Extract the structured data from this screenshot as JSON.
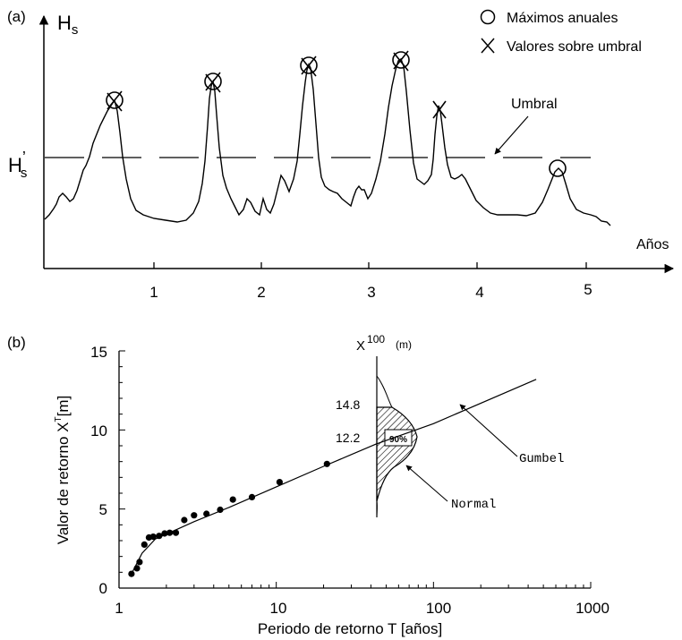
{
  "panel_a": {
    "label": "(a)",
    "y_label_main": "H",
    "y_label_sub": "s",
    "threshold_main": "H",
    "threshold_prime": "’",
    "threshold_sub": "s",
    "legend": [
      {
        "symbol": "circle",
        "label": "Máximos anuales"
      },
      {
        "symbol": "cross",
        "label": "Valores sobre umbral"
      }
    ],
    "umbral_label": "Umbral",
    "x_label": "Años",
    "x_ticks": [
      "1",
      "2",
      "3",
      "4",
      "5"
    ]
  },
  "panel_b": {
    "label": "(b)",
    "y_label": "Valor de retorno X",
    "y_label_sup": "T",
    "y_label_unit": "[m]",
    "x_label": "Periodo de retorno T [años]",
    "x_ticks": [
      "1",
      "10",
      "100",
      "1000"
    ],
    "y_ticks": [
      "0",
      "5",
      "10",
      "15"
    ],
    "inset_axis": "X",
    "inset_sup": "100",
    "inset_unit": "(m)",
    "inset_upper": "14.8",
    "inset_lower": "12.2",
    "inset_box": "90%",
    "gumbel_label": "Gumbel",
    "normal_label": "Normal"
  },
  "chart_data": [
    {
      "type": "line",
      "x_range": [
        0,
        5.6
      ],
      "x_ticks": [
        1,
        2,
        3,
        4,
        5
      ],
      "threshold_relative": 0.5,
      "annual_maxima_x": [
        0.65,
        1.55,
        2.45,
        3.3,
        4.75
      ],
      "peaks_over_threshold_x": [
        0.65,
        1.55,
        2.45,
        3.3,
        3.65
      ]
    },
    {
      "type": "scatter",
      "x_scale": "log",
      "xlim": [
        1,
        1000
      ],
      "ylim": [
        0,
        15
      ],
      "points": [
        [
          1.2,
          0.9
        ],
        [
          1.3,
          1.25
        ],
        [
          1.35,
          1.65
        ],
        [
          1.45,
          2.75
        ],
        [
          1.55,
          3.2
        ],
        [
          1.65,
          3.25
        ],
        [
          1.8,
          3.3
        ],
        [
          1.95,
          3.45
        ],
        [
          2.1,
          3.5
        ],
        [
          2.3,
          3.5
        ],
        [
          2.6,
          4.3
        ],
        [
          3.0,
          4.6
        ],
        [
          3.6,
          4.7
        ],
        [
          4.4,
          4.95
        ],
        [
          5.3,
          5.6
        ],
        [
          7.0,
          5.75
        ],
        [
          10.5,
          6.7
        ],
        [
          21.0,
          7.85
        ]
      ],
      "gumbel_fit": [
        [
          1.2,
          0.9
        ],
        [
          1.4,
          2.2
        ],
        [
          1.7,
          3.1
        ],
        [
          2.2,
          3.6
        ],
        [
          3,
          4.2
        ],
        [
          5,
          5.1
        ],
        [
          10,
          6.4
        ],
        [
          20,
          7.7
        ],
        [
          43,
          9.1
        ],
        [
          100,
          10.4
        ],
        [
          450,
          13.2
        ]
      ],
      "normal_at_T": 43,
      "normal_interval_90": [
        12.2,
        14.8
      ]
    }
  ]
}
